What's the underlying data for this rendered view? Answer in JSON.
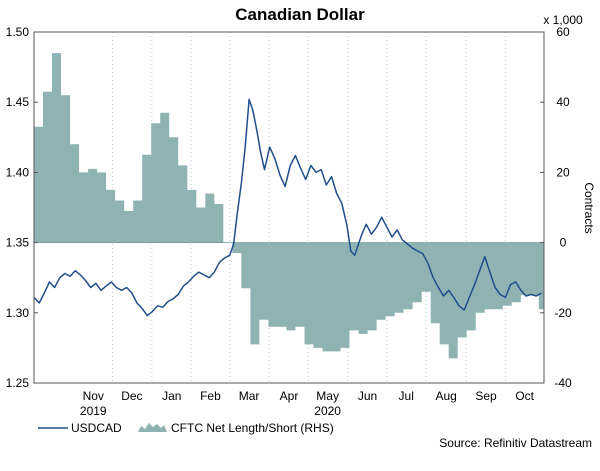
{
  "chart_data": {
    "type": "line",
    "title": "Canadian Dollar",
    "left_axis": {
      "min": 1.25,
      "max": 1.5,
      "ticks": [
        "1.25",
        "1.30",
        "1.35",
        "1.40",
        "1.45",
        "1.50"
      ]
    },
    "right_axis": {
      "min": -40,
      "max": 60,
      "ticks": [
        "-40",
        "-20",
        "0",
        "20",
        "40",
        "60"
      ],
      "unit": "x 1,000",
      "label": "Contracts"
    },
    "x_axis": {
      "start": "2019-10-01",
      "end": "2020-10-31",
      "month_labels": [
        {
          "label": "Nov",
          "date": "2019-11-16"
        },
        {
          "label": "Dec",
          "date": "2019-12-16"
        },
        {
          "label": "Jan",
          "date": "2020-01-16"
        },
        {
          "label": "Feb",
          "date": "2020-02-15"
        },
        {
          "label": "Mar",
          "date": "2020-03-16"
        },
        {
          "label": "Apr",
          "date": "2020-04-16"
        },
        {
          "label": "May",
          "date": "2020-05-16"
        },
        {
          "label": "Jun",
          "date": "2020-06-16"
        },
        {
          "label": "Jul",
          "date": "2020-07-16"
        },
        {
          "label": "Aug",
          "date": "2020-08-16"
        },
        {
          "label": "Sep",
          "date": "2020-09-16"
        },
        {
          "label": "Oct",
          "date": "2020-10-16"
        }
      ],
      "year_labels": [
        {
          "label": "2019",
          "date": "2019-11-16"
        },
        {
          "label": "2020",
          "date": "2020-05-16"
        }
      ]
    },
    "gridlines": "vertical-dotted",
    "legend_position": "bottom-left",
    "source": "Source: Refinitiv Datastream",
    "series": [
      {
        "name": "USDCAD",
        "type": "line",
        "axis": "left",
        "color": "#1f4e8c",
        "points": [
          [
            "2019-10-01",
            1.311
          ],
          [
            "2019-10-05",
            1.307
          ],
          [
            "2019-10-09",
            1.314
          ],
          [
            "2019-10-13",
            1.322
          ],
          [
            "2019-10-17",
            1.318
          ],
          [
            "2019-10-21",
            1.325
          ],
          [
            "2019-10-25",
            1.328
          ],
          [
            "2019-10-29",
            1.326
          ],
          [
            "2019-11-02",
            1.33
          ],
          [
            "2019-11-06",
            1.327
          ],
          [
            "2019-11-10",
            1.323
          ],
          [
            "2019-11-14",
            1.318
          ],
          [
            "2019-11-18",
            1.321
          ],
          [
            "2019-11-22",
            1.316
          ],
          [
            "2019-11-26",
            1.319
          ],
          [
            "2019-11-30",
            1.322
          ],
          [
            "2019-12-04",
            1.318
          ],
          [
            "2019-12-08",
            1.316
          ],
          [
            "2019-12-12",
            1.318
          ],
          [
            "2019-12-16",
            1.314
          ],
          [
            "2019-12-20",
            1.307
          ],
          [
            "2019-12-24",
            1.303
          ],
          [
            "2019-12-28",
            1.298
          ],
          [
            "2020-01-01",
            1.301
          ],
          [
            "2020-01-05",
            1.305
          ],
          [
            "2020-01-09",
            1.304
          ],
          [
            "2020-01-13",
            1.308
          ],
          [
            "2020-01-17",
            1.31
          ],
          [
            "2020-01-21",
            1.313
          ],
          [
            "2020-01-25",
            1.319
          ],
          [
            "2020-01-29",
            1.322
          ],
          [
            "2020-02-02",
            1.326
          ],
          [
            "2020-02-06",
            1.329
          ],
          [
            "2020-02-10",
            1.327
          ],
          [
            "2020-02-14",
            1.325
          ],
          [
            "2020-02-18",
            1.329
          ],
          [
            "2020-02-22",
            1.336
          ],
          [
            "2020-02-26",
            1.339
          ],
          [
            "2020-03-01",
            1.341
          ],
          [
            "2020-03-04",
            1.349
          ],
          [
            "2020-03-07",
            1.372
          ],
          [
            "2020-03-10",
            1.392
          ],
          [
            "2020-03-13",
            1.418
          ],
          [
            "2020-03-16",
            1.452
          ],
          [
            "2020-03-19",
            1.444
          ],
          [
            "2020-03-22",
            1.43
          ],
          [
            "2020-03-25",
            1.414
          ],
          [
            "2020-03-28",
            1.402
          ],
          [
            "2020-04-01",
            1.418
          ],
          [
            "2020-04-05",
            1.41
          ],
          [
            "2020-04-09",
            1.398
          ],
          [
            "2020-04-13",
            1.39
          ],
          [
            "2020-04-17",
            1.405
          ],
          [
            "2020-04-21",
            1.412
          ],
          [
            "2020-04-25",
            1.403
          ],
          [
            "2020-04-29",
            1.395
          ],
          [
            "2020-05-03",
            1.405
          ],
          [
            "2020-05-07",
            1.4
          ],
          [
            "2020-05-11",
            1.402
          ],
          [
            "2020-05-15",
            1.391
          ],
          [
            "2020-05-19",
            1.397
          ],
          [
            "2020-05-23",
            1.385
          ],
          [
            "2020-05-27",
            1.378
          ],
          [
            "2020-05-31",
            1.362
          ],
          [
            "2020-06-03",
            1.344
          ],
          [
            "2020-06-06",
            1.341
          ],
          [
            "2020-06-09",
            1.349
          ],
          [
            "2020-06-12",
            1.357
          ],
          [
            "2020-06-15",
            1.363
          ],
          [
            "2020-06-19",
            1.356
          ],
          [
            "2020-06-23",
            1.361
          ],
          [
            "2020-06-27",
            1.368
          ],
          [
            "2020-07-01",
            1.361
          ],
          [
            "2020-07-05",
            1.354
          ],
          [
            "2020-07-09",
            1.359
          ],
          [
            "2020-07-13",
            1.352
          ],
          [
            "2020-07-17",
            1.349
          ],
          [
            "2020-07-21",
            1.346
          ],
          [
            "2020-07-25",
            1.344
          ],
          [
            "2020-07-29",
            1.342
          ],
          [
            "2020-08-02",
            1.335
          ],
          [
            "2020-08-06",
            1.325
          ],
          [
            "2020-08-10",
            1.318
          ],
          [
            "2020-08-14",
            1.312
          ],
          [
            "2020-08-18",
            1.316
          ],
          [
            "2020-08-22",
            1.311
          ],
          [
            "2020-08-26",
            1.305
          ],
          [
            "2020-08-30",
            1.302
          ],
          [
            "2020-09-03",
            1.311
          ],
          [
            "2020-09-07",
            1.32
          ],
          [
            "2020-09-11",
            1.33
          ],
          [
            "2020-09-15",
            1.34
          ],
          [
            "2020-09-19",
            1.329
          ],
          [
            "2020-09-23",
            1.318
          ],
          [
            "2020-09-27",
            1.313
          ],
          [
            "2020-10-01",
            1.311
          ],
          [
            "2020-10-05",
            1.32
          ],
          [
            "2020-10-09",
            1.322
          ],
          [
            "2020-10-13",
            1.316
          ],
          [
            "2020-10-17",
            1.312
          ],
          [
            "2020-10-21",
            1.313
          ],
          [
            "2020-10-25",
            1.312
          ],
          [
            "2020-10-29",
            1.314
          ]
        ]
      },
      {
        "name": "CFTC Net Length/Short (RHS)",
        "type": "area",
        "axis": "right",
        "color": "#8fb3b3",
        "points": [
          [
            "2019-10-01",
            33
          ],
          [
            "2019-10-08",
            43
          ],
          [
            "2019-10-15",
            54
          ],
          [
            "2019-10-22",
            42
          ],
          [
            "2019-10-29",
            28
          ],
          [
            "2019-11-05",
            20
          ],
          [
            "2019-11-12",
            21
          ],
          [
            "2019-11-19",
            20
          ],
          [
            "2019-11-26",
            15
          ],
          [
            "2019-12-03",
            12
          ],
          [
            "2019-12-10",
            9
          ],
          [
            "2019-12-17",
            12
          ],
          [
            "2019-12-24",
            25
          ],
          [
            "2019-12-31",
            34
          ],
          [
            "2020-01-07",
            37
          ],
          [
            "2020-01-14",
            30
          ],
          [
            "2020-01-21",
            22
          ],
          [
            "2020-01-28",
            15
          ],
          [
            "2020-02-04",
            10
          ],
          [
            "2020-02-11",
            14
          ],
          [
            "2020-02-18",
            11
          ],
          [
            "2020-02-25",
            0
          ],
          [
            "2020-03-03",
            -3
          ],
          [
            "2020-03-10",
            -13
          ],
          [
            "2020-03-17",
            -29
          ],
          [
            "2020-03-24",
            -22
          ],
          [
            "2020-03-31",
            -24
          ],
          [
            "2020-04-07",
            -24
          ],
          [
            "2020-04-14",
            -25
          ],
          [
            "2020-04-21",
            -24
          ],
          [
            "2020-04-28",
            -29
          ],
          [
            "2020-05-05",
            -30
          ],
          [
            "2020-05-12",
            -31
          ],
          [
            "2020-05-19",
            -31
          ],
          [
            "2020-05-26",
            -30
          ],
          [
            "2020-06-02",
            -25
          ],
          [
            "2020-06-09",
            -26
          ],
          [
            "2020-06-16",
            -25
          ],
          [
            "2020-06-23",
            -22
          ],
          [
            "2020-06-30",
            -21
          ],
          [
            "2020-07-07",
            -20
          ],
          [
            "2020-07-14",
            -19
          ],
          [
            "2020-07-21",
            -17
          ],
          [
            "2020-07-28",
            -14
          ],
          [
            "2020-08-04",
            -23
          ],
          [
            "2020-08-11",
            -29
          ],
          [
            "2020-08-18",
            -33
          ],
          [
            "2020-08-25",
            -27
          ],
          [
            "2020-09-01",
            -25
          ],
          [
            "2020-09-08",
            -20
          ],
          [
            "2020-09-15",
            -19
          ],
          [
            "2020-09-22",
            -19
          ],
          [
            "2020-09-29",
            -18
          ],
          [
            "2020-10-06",
            -17
          ],
          [
            "2020-10-13",
            -15
          ],
          [
            "2020-10-20",
            -15
          ],
          [
            "2020-10-27",
            -19
          ]
        ]
      }
    ]
  }
}
